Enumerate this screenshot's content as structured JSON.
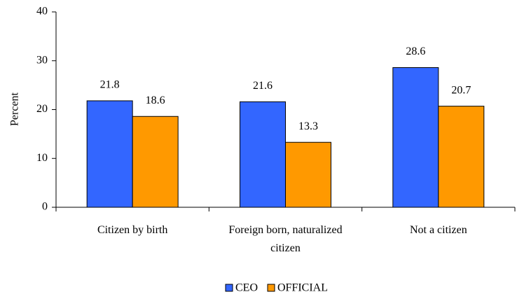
{
  "chart_data": {
    "type": "bar",
    "categories": [
      "Citizen by birth",
      "Foreign born, naturalized citizen",
      "Not a citizen"
    ],
    "series": [
      {
        "name": "CEO",
        "color": "#3366ff",
        "values": [
          21.8,
          21.6,
          28.6
        ]
      },
      {
        "name": "OFFICIAL",
        "color": "#ff9900",
        "values": [
          18.6,
          13.3,
          20.7
        ]
      }
    ],
    "y_label": "Percent",
    "ylim": [
      0,
      40
    ],
    "yticks": [
      0,
      10,
      20,
      30,
      40
    ],
    "legend": "bottom"
  }
}
